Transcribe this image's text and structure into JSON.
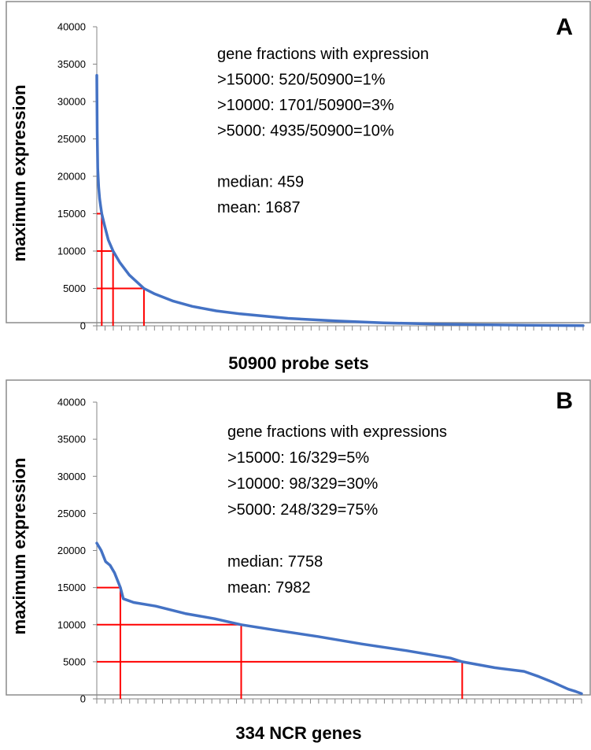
{
  "chart_data": [
    {
      "type": "line",
      "panel": "A",
      "xlabel": "50900 probe sets",
      "ylabel": "maximum expression",
      "ylim": [
        0,
        40000
      ],
      "yticks": [
        "0",
        "5000",
        "10000",
        "15000",
        "20000",
        "25000",
        "30000",
        "35000",
        "40000"
      ],
      "x_count": 50900,
      "annotations": [
        "gene fractions with expression",
        ">15000: 520/50900=1%",
        ">10000: 1701/50900=3%",
        ">5000: 4935/50900=10%",
        "",
        "median: 459",
        "mean: 1687"
      ],
      "thresholds": [
        {
          "y": 15000,
          "x": 520
        },
        {
          "y": 10000,
          "x": 1701
        },
        {
          "y": 5000,
          "x": 4935
        }
      ],
      "series": [
        {
          "x": [
            0,
            40,
            100,
            200,
            300,
            400,
            520,
            800,
            1200,
            1701,
            2400,
            3400,
            4935,
            6000,
            8000,
            10000,
            12500,
            15000,
            20000,
            25000,
            30000,
            35000,
            40000,
            45000,
            50900
          ],
          "values": [
            33500,
            26000,
            21000,
            18500,
            17000,
            16000,
            15000,
            13500,
            11500,
            10000,
            8500,
            6800,
            5000,
            4300,
            3300,
            2600,
            2000,
            1600,
            1000,
            650,
            400,
            250,
            150,
            80,
            20
          ]
        }
      ],
      "line_color": "#4472C4",
      "threshold_color": "#FF0000",
      "grid": false
    },
    {
      "type": "line",
      "panel": "B",
      "xlabel": "334 NCR genes",
      "ylabel": "maximum expression",
      "ylim": [
        0,
        40000
      ],
      "yticks": [
        "0",
        "5000",
        "10000",
        "15000",
        "20000",
        "25000",
        "30000",
        "35000",
        "40000"
      ],
      "x_count": 329,
      "annotations": [
        "gene fractions with expressions",
        ">15000: 16/329=5%",
        ">10000: 98/329=30%",
        ">5000: 248/329=75%",
        "",
        "median: 7758",
        "mean: 7982"
      ],
      "thresholds": [
        {
          "y": 15000,
          "x": 16
        },
        {
          "y": 10000,
          "x": 98
        },
        {
          "y": 5000,
          "x": 248
        }
      ],
      "series": [
        {
          "x": [
            0,
            3,
            6,
            9,
            12,
            16,
            18,
            25,
            40,
            60,
            80,
            98,
            120,
            150,
            180,
            210,
            240,
            248,
            270,
            290,
            300,
            310,
            320,
            325,
            329
          ],
          "values": [
            21000,
            20000,
            18500,
            18000,
            17000,
            15000,
            13500,
            13000,
            12500,
            11500,
            10800,
            10000,
            9300,
            8400,
            7400,
            6500,
            5500,
            5000,
            4200,
            3700,
            3000,
            2200,
            1300,
            1000,
            700
          ]
        }
      ],
      "line_color": "#4472C4",
      "threshold_color": "#FF0000",
      "grid": false
    }
  ]
}
